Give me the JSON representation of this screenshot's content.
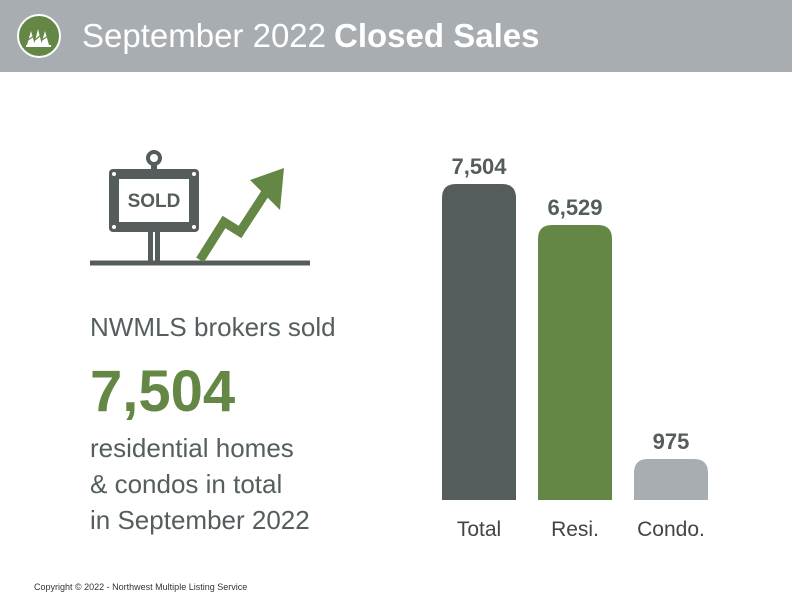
{
  "header": {
    "title_light": "September 2022",
    "title_bold": "Closed Sales",
    "logo_icon": "nwmls-trees-logo-icon"
  },
  "illustration": {
    "sign_text": "SOLD",
    "icon": "sold-sign-rising-arrow-icon"
  },
  "summary": {
    "lead": "NWMLS brokers sold",
    "number": "7,504",
    "line1": "residential homes",
    "line2": "& condos in total",
    "line3": "in September 2022"
  },
  "colors": {
    "header_bg": "#a8adb2",
    "dark_gray": "#545d5c",
    "green": "#658745",
    "light_gray": "#a8adb2"
  },
  "chart_data": {
    "type": "bar",
    "categories": [
      "Total",
      "Resi.",
      "Condo."
    ],
    "values": [
      7504,
      6529,
      975
    ],
    "value_labels": [
      "7,504",
      "6,529",
      "975"
    ],
    "colors": [
      "#545d5c",
      "#658745",
      "#a8adb2"
    ],
    "ylim": [
      0,
      7504
    ],
    "grid": false,
    "legend": "none"
  },
  "footer": {
    "copyright": "Copyright © 2022 - Northwest Multiple Listing Service"
  }
}
